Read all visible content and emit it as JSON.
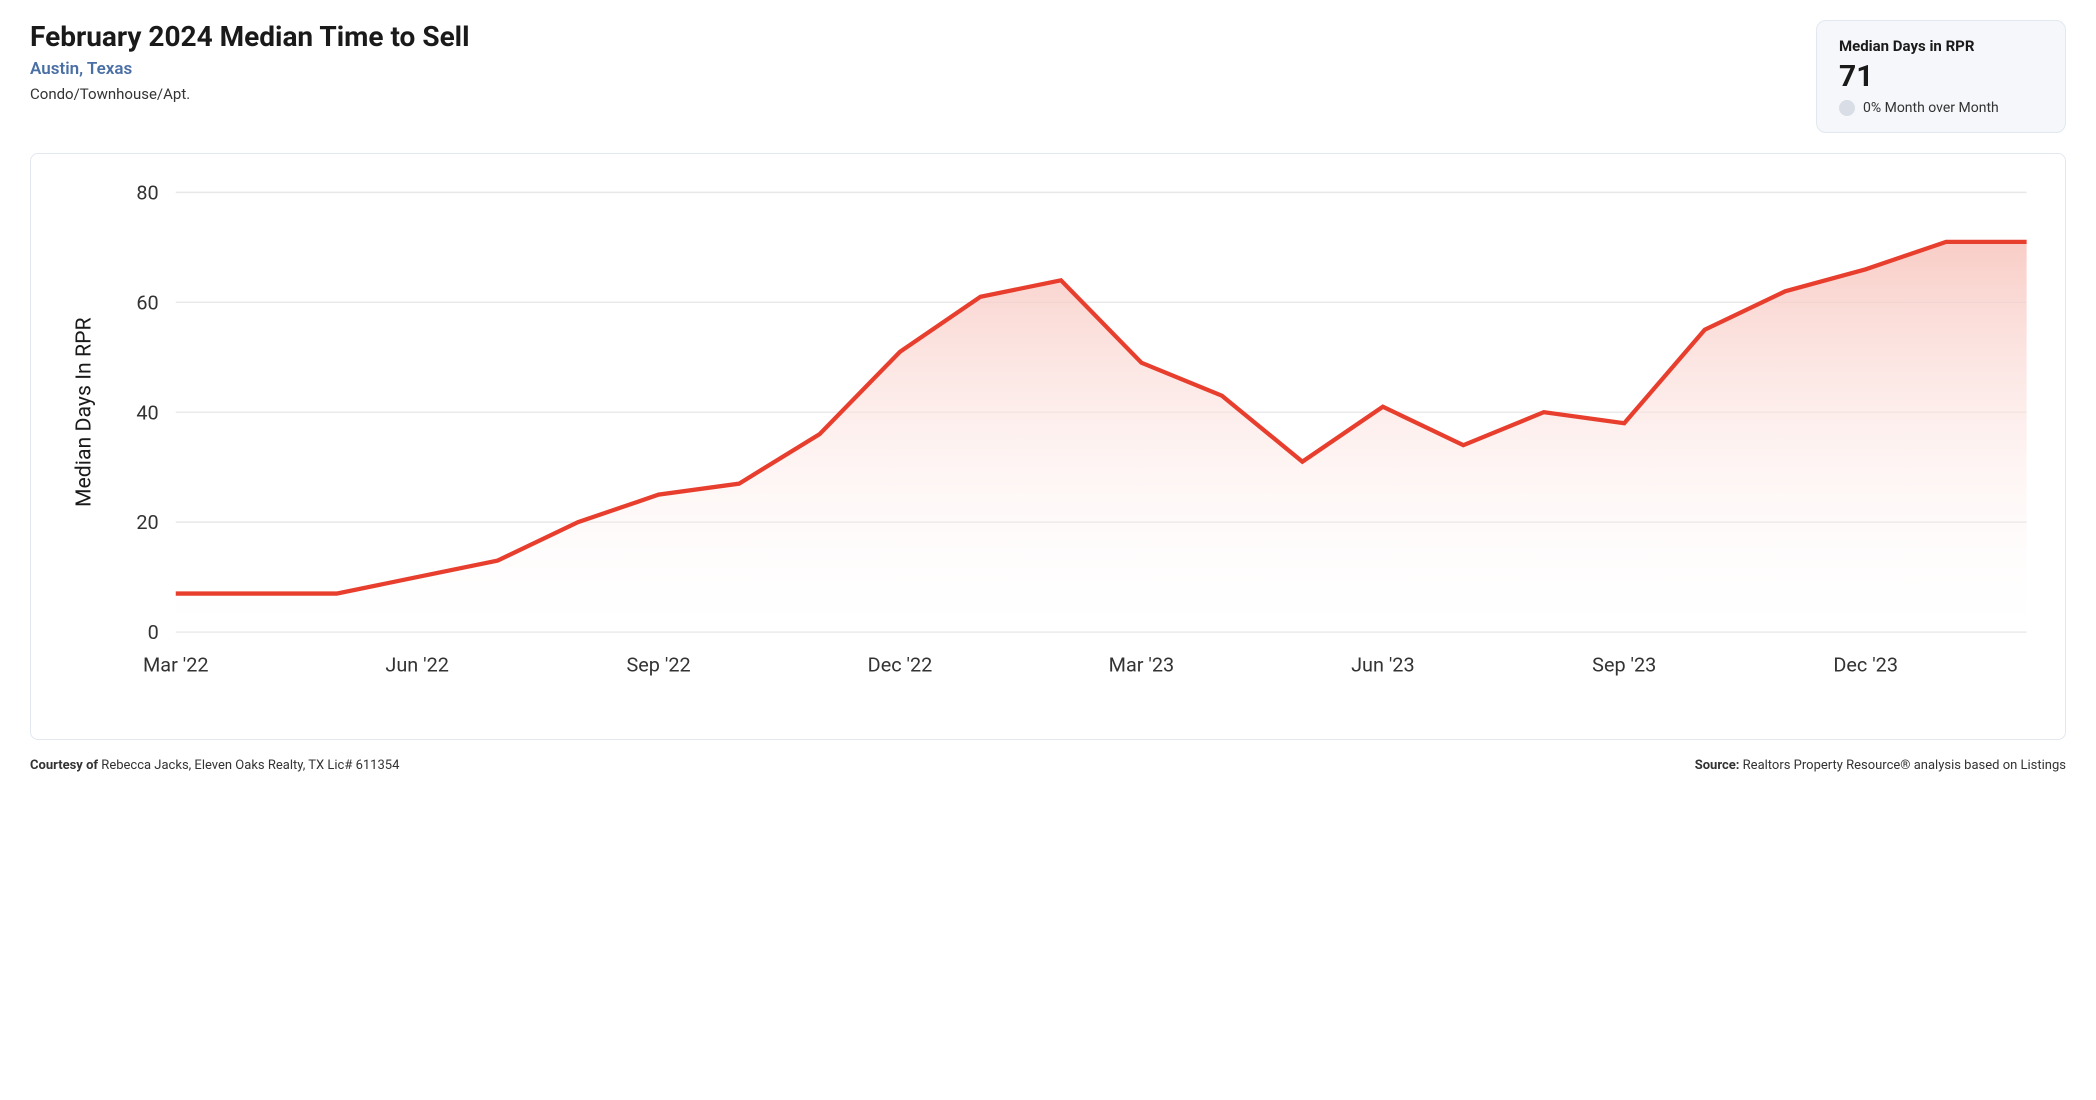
{
  "header": {
    "title": "February 2024 Median Time to Sell",
    "location": "Austin, Texas",
    "property_type": "Condo/Townhouse/Apt."
  },
  "stat_box": {
    "label": "Median Days in RPR",
    "value": "71",
    "change_text": "0% Month over Month",
    "change_dot_color": "#d8dde6"
  },
  "chart": {
    "type": "area",
    "y_label": "Median Days In RPR",
    "line_color": "#e83e2e",
    "area_top_color": "#f8c7c0",
    "area_bottom_color": "#ffffff",
    "background_color": "#ffffff",
    "grid_color": "#e8e8e8",
    "line_width": 3,
    "ylim": [
      0,
      80
    ],
    "ytick_step": 20,
    "y_ticks": [
      0,
      20,
      40,
      60,
      80
    ],
    "x_tick_labels": [
      "Mar '22",
      "Jun '22",
      "Sep '22",
      "Dec '22",
      "Mar '23",
      "Jun '23",
      "Sep '23",
      "Dec '23"
    ],
    "x_tick_indices": [
      0,
      3,
      6,
      9,
      12,
      15,
      18,
      21
    ],
    "label_fontsize": 14,
    "axis_label_fontsize": 15,
    "data": {
      "months": [
        "Mar '22",
        "Apr '22",
        "May '22",
        "Jun '22",
        "Jul '22",
        "Aug '22",
        "Sep '22",
        "Oct '22",
        "Nov '22",
        "Dec '22",
        "Jan '23",
        "Feb '23",
        "Mar '23",
        "Apr '23",
        "May '23",
        "Jun '23",
        "Jul '23",
        "Aug '23",
        "Sep '23",
        "Oct '23",
        "Nov '23",
        "Dec '23",
        "Jan '24",
        "Feb '24"
      ],
      "values": [
        7,
        7,
        7,
        10,
        13,
        20,
        25,
        27,
        36,
        51,
        61,
        64,
        49,
        43,
        31,
        41,
        34,
        40,
        38,
        55,
        62,
        66,
        71,
        71
      ]
    }
  },
  "footer": {
    "courtesy_label": "Courtesy of",
    "courtesy_text": " Rebecca Jacks, Eleven Oaks Realty, TX Lic# 611354",
    "source_label": "Source:",
    "source_text": " Realtors Property Resource® analysis based on Listings"
  }
}
